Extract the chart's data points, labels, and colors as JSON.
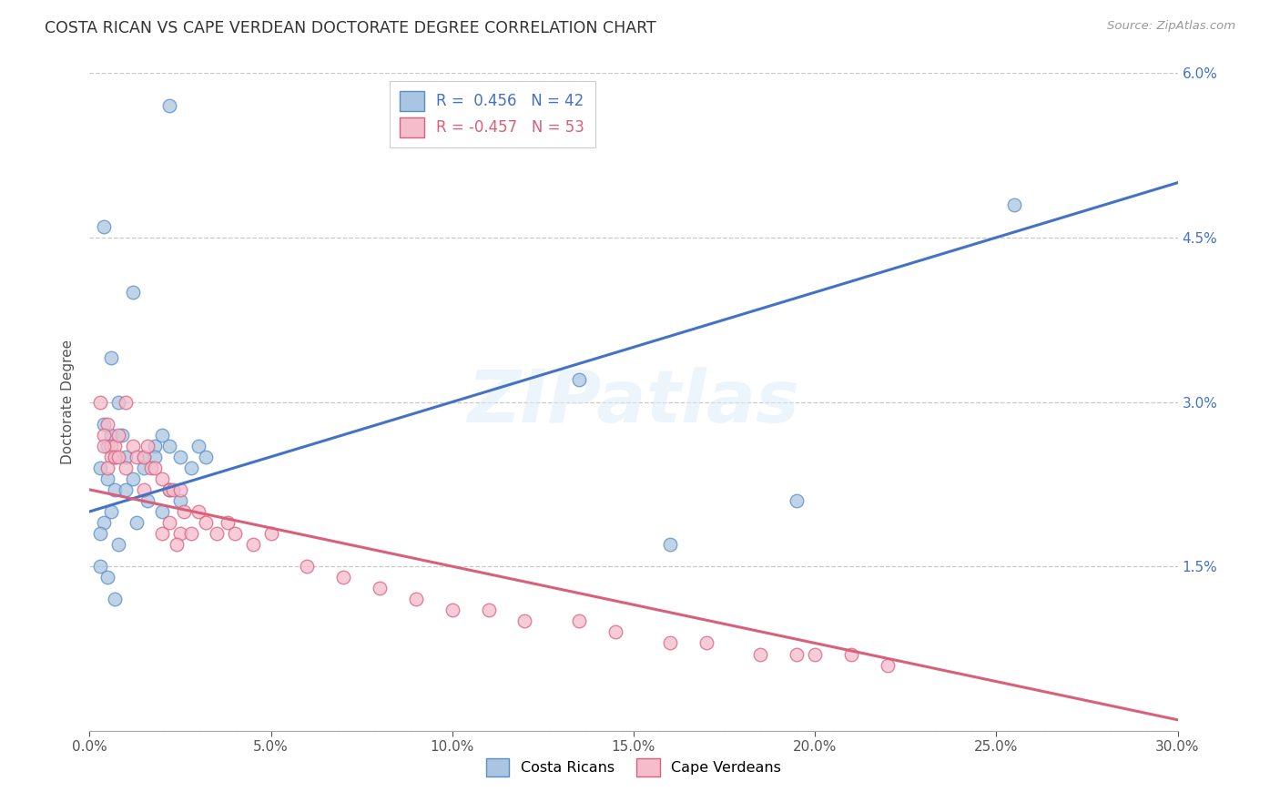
{
  "title": "COSTA RICAN VS CAPE VERDEAN DOCTORATE DEGREE CORRELATION CHART",
  "source": "Source: ZipAtlas.com",
  "ylabel_label": "Doctorate Degree",
  "x_min": 0.0,
  "x_max": 0.3,
  "y_min": 0.0,
  "y_max": 0.06,
  "x_ticks": [
    0.0,
    0.05,
    0.1,
    0.15,
    0.2,
    0.25,
    0.3
  ],
  "x_tick_labels": [
    "0.0%",
    "5.0%",
    "10.0%",
    "15.0%",
    "20.0%",
    "25.0%",
    "30.0%"
  ],
  "y_ticks": [
    0.0,
    0.015,
    0.03,
    0.045,
    0.06
  ],
  "y_tick_labels": [
    "",
    "1.5%",
    "3.0%",
    "4.5%",
    "6.0%"
  ],
  "blue_R": "0.456",
  "blue_N": "42",
  "pink_R": "-0.457",
  "pink_N": "53",
  "blue_color": "#aac5e2",
  "pink_color": "#f5bccb",
  "blue_edge_color": "#5b8ec4",
  "pink_edge_color": "#d96080",
  "blue_line_color": "#4472c4",
  "pink_line_color": "#d9607a",
  "legend_label_blue": "Costa Ricans",
  "legend_label_pink": "Cape Verdeans",
  "watermark": "ZIPatlas",
  "blue_scatter_x": [
    0.022,
    0.004,
    0.012,
    0.006,
    0.008,
    0.004,
    0.006,
    0.005,
    0.007,
    0.003,
    0.009,
    0.01,
    0.015,
    0.018,
    0.02,
    0.005,
    0.007,
    0.01,
    0.012,
    0.015,
    0.018,
    0.022,
    0.025,
    0.03,
    0.028,
    0.032,
    0.006,
    0.004,
    0.003,
    0.008,
    0.013,
    0.016,
    0.02,
    0.022,
    0.025,
    0.135,
    0.003,
    0.005,
    0.007,
    0.16,
    0.195,
    0.255
  ],
  "blue_scatter_y": [
    0.057,
    0.046,
    0.04,
    0.034,
    0.03,
    0.028,
    0.027,
    0.026,
    0.025,
    0.024,
    0.027,
    0.025,
    0.025,
    0.026,
    0.027,
    0.023,
    0.022,
    0.022,
    0.023,
    0.024,
    0.025,
    0.026,
    0.025,
    0.026,
    0.024,
    0.025,
    0.02,
    0.019,
    0.018,
    0.017,
    0.019,
    0.021,
    0.02,
    0.022,
    0.021,
    0.032,
    0.015,
    0.014,
    0.012,
    0.017,
    0.021,
    0.048
  ],
  "pink_scatter_x": [
    0.003,
    0.005,
    0.004,
    0.006,
    0.007,
    0.008,
    0.006,
    0.005,
    0.007,
    0.004,
    0.008,
    0.01,
    0.01,
    0.012,
    0.013,
    0.015,
    0.016,
    0.017,
    0.018,
    0.015,
    0.02,
    0.022,
    0.023,
    0.025,
    0.026,
    0.02,
    0.022,
    0.025,
    0.024,
    0.028,
    0.03,
    0.032,
    0.035,
    0.038,
    0.04,
    0.045,
    0.05,
    0.06,
    0.07,
    0.08,
    0.09,
    0.1,
    0.11,
    0.12,
    0.135,
    0.145,
    0.16,
    0.17,
    0.185,
    0.195,
    0.2,
    0.21,
    0.22
  ],
  "pink_scatter_y": [
    0.03,
    0.028,
    0.027,
    0.026,
    0.026,
    0.027,
    0.025,
    0.024,
    0.025,
    0.026,
    0.025,
    0.03,
    0.024,
    0.026,
    0.025,
    0.025,
    0.026,
    0.024,
    0.024,
    0.022,
    0.023,
    0.022,
    0.022,
    0.022,
    0.02,
    0.018,
    0.019,
    0.018,
    0.017,
    0.018,
    0.02,
    0.019,
    0.018,
    0.019,
    0.018,
    0.017,
    0.018,
    0.015,
    0.014,
    0.013,
    0.012,
    0.011,
    0.011,
    0.01,
    0.01,
    0.009,
    0.008,
    0.008,
    0.007,
    0.007,
    0.007,
    0.007,
    0.006
  ],
  "blue_trend_x": [
    0.0,
    0.3
  ],
  "blue_trend_y": [
    0.02,
    0.05
  ],
  "pink_trend_x": [
    0.0,
    0.3
  ],
  "pink_trend_y": [
    0.022,
    0.001
  ]
}
